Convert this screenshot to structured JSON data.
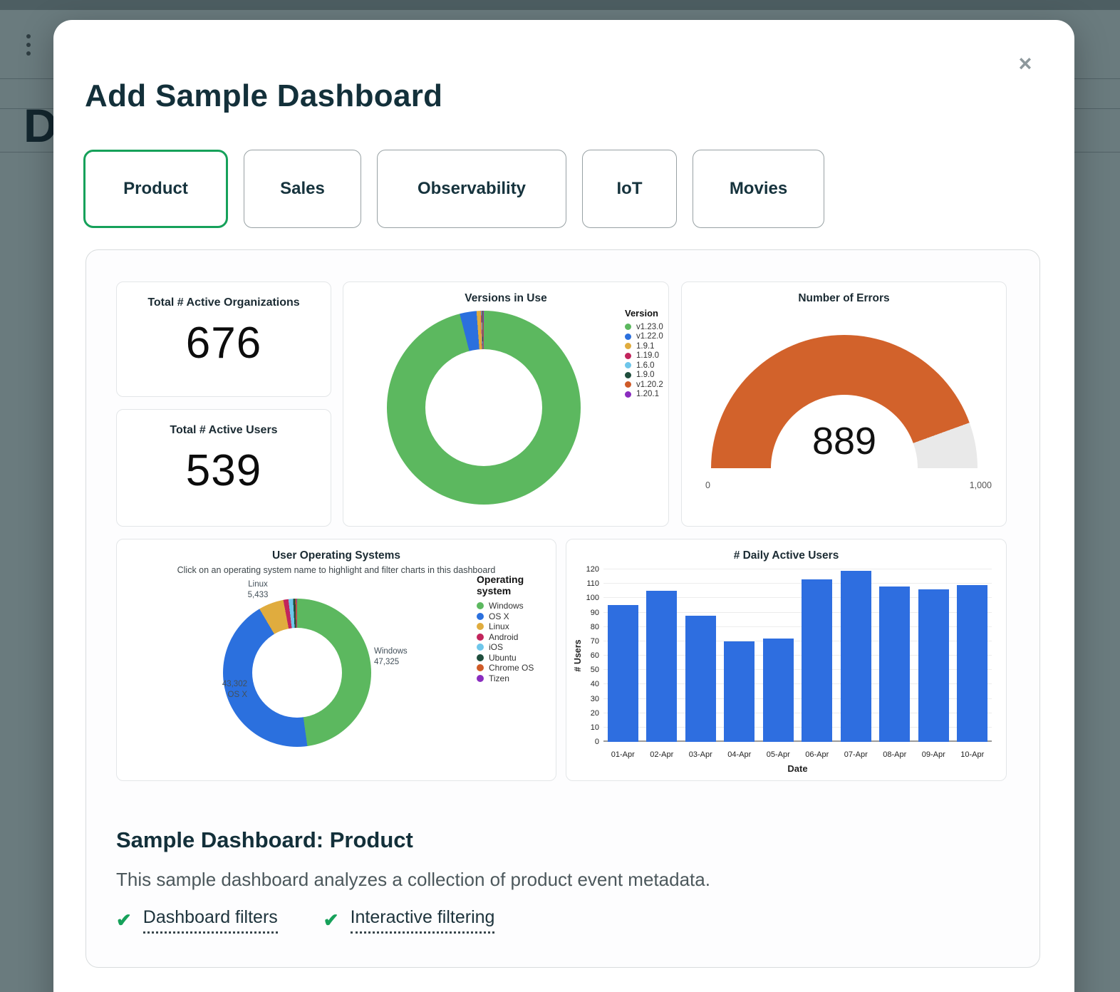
{
  "icons": {
    "close": "×",
    "check": "✔"
  },
  "background": {
    "page_title_partial": "D"
  },
  "modal": {
    "title": "Add Sample Dashboard",
    "tabs": [
      {
        "label": "Product",
        "selected": true
      },
      {
        "label": "Sales",
        "selected": false
      },
      {
        "label": "Observability",
        "selected": false
      },
      {
        "label": "IoT",
        "selected": false
      },
      {
        "label": "Movies",
        "selected": false
      }
    ],
    "footer": {
      "heading": "Sample Dashboard: Product",
      "description": "This sample dashboard analyzes a collection of product event metadata.",
      "features": [
        "Dashboard filters",
        "Interactive filtering"
      ]
    }
  },
  "chart_data": [
    {
      "id": "active_orgs",
      "type": "stat",
      "title": "Total # Active Organizations",
      "value": "676"
    },
    {
      "id": "active_users",
      "type": "stat",
      "title": "Total # Active Users",
      "value": "539"
    },
    {
      "id": "versions",
      "type": "pie",
      "title": "Versions in Use",
      "legend_title": "Version",
      "legend_position": "right",
      "series": [
        {
          "label": "v1.23.0",
          "value": 96.0,
          "color": "#5cb85f"
        },
        {
          "label": "v1.22.0",
          "value": 2.8,
          "color": "#2b70de"
        },
        {
          "label": "1.9.1",
          "value": 0.7,
          "color": "#e0ac3e"
        },
        {
          "label": "1.19.0",
          "value": 0.1,
          "color": "#c2255c"
        },
        {
          "label": "1.6.0",
          "value": 0.1,
          "color": "#6ec6ea"
        },
        {
          "label": "1.9.0",
          "value": 0.1,
          "color": "#1f4e3d"
        },
        {
          "label": "v1.20.2",
          "value": 0.1,
          "color": "#cf5b28"
        },
        {
          "label": "1.20.1",
          "value": 0.1,
          "color": "#8a2dbf"
        }
      ]
    },
    {
      "id": "errors",
      "type": "gauge",
      "title": "Number of Errors",
      "value": 889,
      "min": 0,
      "max": 1000,
      "min_label": "0",
      "max_label": "1,000",
      "color": "#d2622b",
      "track_color": "#e9e9e9"
    },
    {
      "id": "os",
      "type": "pie",
      "title": "User Operating Systems",
      "subtitle": "Click on an operating system name to highlight and filter charts in this dashboard",
      "legend_title": "Operating system",
      "legend_position": "right",
      "series": [
        {
          "label": "Windows",
          "value": 47325,
          "color": "#5cb85f"
        },
        {
          "label": "OS X",
          "value": 43302,
          "color": "#2b70de"
        },
        {
          "label": "Linux",
          "value": 5433,
          "color": "#e0ac3e"
        },
        {
          "label": "Android",
          "value": 1100,
          "color": "#c2255c"
        },
        {
          "label": "iOS",
          "value": 1000,
          "color": "#6ec6ea"
        },
        {
          "label": "Ubuntu",
          "value": 500,
          "color": "#1f4e3d"
        },
        {
          "label": "Chrome OS",
          "value": 250,
          "color": "#cf5b28"
        },
        {
          "label": "Tizen",
          "value": 120,
          "color": "#8a2dbf"
        }
      ],
      "callouts": [
        {
          "line1": "Linux",
          "line2": "5,433"
        },
        {
          "line1": "Windows",
          "line2": "47,325"
        },
        {
          "line1": "43,302",
          "line2": "OS X"
        }
      ]
    },
    {
      "id": "dau",
      "type": "bar",
      "title": "# Daily Active Users",
      "xlabel": "Date",
      "ylabel": "# Users",
      "categories": [
        "01-Apr",
        "02-Apr",
        "03-Apr",
        "04-Apr",
        "05-Apr",
        "06-Apr",
        "07-Apr",
        "08-Apr",
        "09-Apr",
        "10-Apr"
      ],
      "values": [
        95,
        105,
        88,
        70,
        72,
        113,
        119,
        108,
        106,
        109
      ],
      "ylim": [
        0,
        120
      ],
      "yticks": [
        0,
        10,
        20,
        30,
        40,
        50,
        60,
        70,
        80,
        90,
        100,
        110,
        120
      ],
      "bar_color": "#2e6ee0",
      "grid": true
    }
  ]
}
